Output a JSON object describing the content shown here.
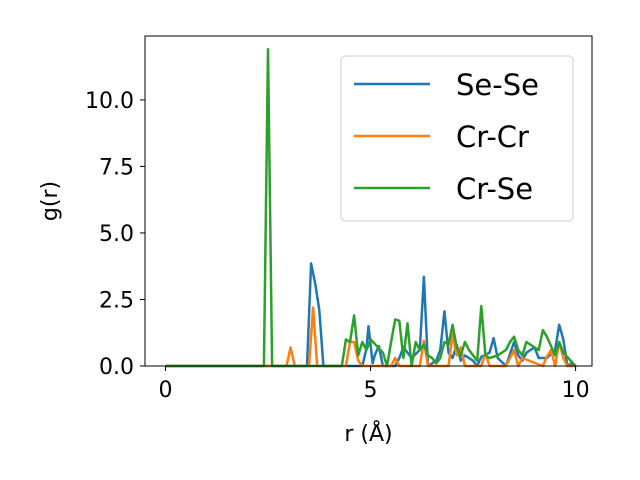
{
  "chart_data": {
    "type": "line",
    "title": "",
    "xlabel": "r (Å)",
    "ylabel": "g(r)",
    "xlim": [
      -0.5,
      10.4
    ],
    "ylim": [
      0,
      12.4
    ],
    "xticks": [
      0,
      5,
      10
    ],
    "xtick_labels": [
      "0",
      "5",
      "10"
    ],
    "yticks": [
      0.0,
      2.5,
      5.0,
      7.5,
      10.0
    ],
    "ytick_labels": [
      "0.0",
      "2.5",
      "5.0",
      "7.5",
      "10.0"
    ],
    "grid": false,
    "legend_position": "top-right",
    "series": [
      {
        "name": "Se-Se",
        "color": "#1f77b4",
        "x": [
          0,
          3.4,
          3.45,
          3.55,
          3.65,
          3.75,
          3.85,
          4.8,
          4.9,
          4.95,
          5.05,
          5.1,
          5.2,
          5.3,
          5.4,
          5.6,
          5.7,
          5.8,
          6.0,
          6.2,
          6.3,
          6.4,
          6.6,
          6.7,
          6.8,
          6.9,
          7.0,
          7.1,
          7.2,
          7.3,
          7.5,
          7.6,
          7.7,
          7.9,
          8.0,
          8.1,
          8.3,
          8.4,
          8.5,
          8.6,
          8.7,
          8.8,
          8.9,
          9.0,
          9.1,
          9.2,
          9.3,
          9.5,
          9.6,
          9.7,
          9.8,
          9.9,
          10.0
        ],
        "y": [
          0,
          0,
          0,
          3.85,
          3.1,
          2.1,
          0,
          0,
          0.65,
          1.5,
          0.1,
          0.4,
          0.75,
          0,
          0,
          0,
          0.3,
          0.7,
          0.3,
          0.6,
          3.35,
          0,
          0.2,
          0.6,
          2.05,
          0.5,
          0.3,
          0.8,
          0.2,
          0.4,
          0.2,
          0,
          0.35,
          0.5,
          1.05,
          0.3,
          0,
          0.45,
          0.9,
          0.4,
          0.2,
          0.5,
          0.6,
          0.7,
          0.3,
          0.3,
          0.3,
          0.6,
          1.55,
          1.0,
          0,
          0.1,
          0
        ]
      },
      {
        "name": "Cr-Cr",
        "color": "#ff7f0e",
        "x": [
          0,
          2.95,
          3.05,
          3.15,
          3.5,
          3.6,
          3.7,
          4.4,
          4.5,
          4.6,
          4.7,
          4.8,
          5.5,
          5.6,
          5.7,
          6.2,
          6.3,
          6.4,
          6.9,
          7.0,
          7.1,
          7.2,
          7.3,
          7.7,
          7.8,
          7.9,
          8.3,
          8.4,
          8.5,
          8.6,
          8.7,
          9.2,
          9.3,
          9.4,
          9.5,
          9.6,
          9.7,
          9.8,
          10.0
        ],
        "y": [
          0,
          0,
          0.7,
          0,
          0,
          2.2,
          0,
          0,
          0.9,
          0.9,
          0.2,
          0,
          0,
          0.3,
          0,
          0,
          0.95,
          0,
          0,
          1.2,
          0.4,
          0.7,
          0,
          0,
          0.5,
          0,
          0,
          0.3,
          0.6,
          0,
          0.3,
          0,
          0.35,
          0.6,
          0,
          0.9,
          0.3,
          0,
          0
        ]
      },
      {
        "name": "Cr-Se",
        "color": "#2ca02c",
        "x": [
          0,
          2.4,
          2.5,
          2.6,
          4.3,
          4.4,
          4.5,
          4.6,
          4.7,
          4.8,
          4.9,
          5.0,
          5.3,
          5.4,
          5.5,
          5.6,
          5.7,
          5.8,
          5.9,
          6.0,
          6.1,
          6.2,
          6.3,
          6.4,
          6.5,
          6.6,
          6.7,
          6.8,
          6.9,
          7.0,
          7.1,
          7.2,
          7.3,
          7.4,
          7.5,
          7.6,
          7.7,
          7.8,
          7.9,
          8.1,
          8.3,
          8.4,
          8.5,
          8.6,
          8.7,
          8.8,
          9.0,
          9.1,
          9.2,
          9.3,
          9.5,
          9.6,
          9.7,
          10.0
        ],
        "y": [
          0,
          0,
          11.9,
          0,
          0,
          1.0,
          0.9,
          1.9,
          0.4,
          0.9,
          0.6,
          1.0,
          0.5,
          0,
          0.9,
          1.75,
          1.7,
          0.3,
          1.6,
          0,
          0.9,
          0.6,
          0.8,
          0.4,
          0.3,
          0.1,
          0.3,
          0.9,
          0.8,
          1.55,
          0.7,
          0.4,
          0.9,
          0.6,
          0.4,
          0.2,
          2.25,
          0.4,
          0.3,
          0.4,
          0.6,
          0.9,
          1.1,
          0.6,
          0.4,
          0.9,
          0.7,
          0.6,
          1.35,
          1.1,
          0.4,
          0.9,
          0.5,
          0
        ]
      }
    ]
  }
}
